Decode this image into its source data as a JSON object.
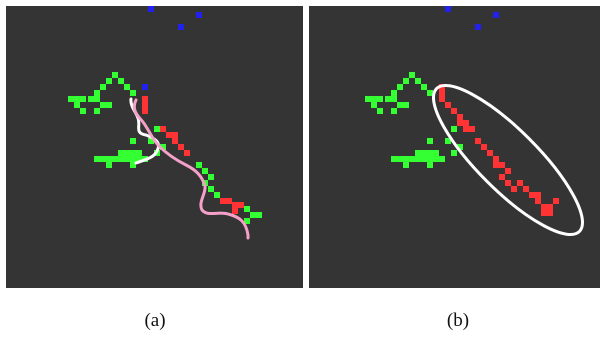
{
  "figure": {
    "panels": [
      {
        "id": "a",
        "caption": "(a)",
        "background": "#343434",
        "colors": {
          "green": "#33ff33",
          "red": "#ff3333",
          "blue": "#2222ee",
          "white": "#ffffff",
          "pink": "#f4a0c8"
        }
      },
      {
        "id": "b",
        "caption": "(b)",
        "background": "#343434",
        "colors": {
          "green": "#33ff33",
          "red": "#ff3333",
          "blue": "#2222ee",
          "white": "#ffffff"
        }
      }
    ]
  }
}
